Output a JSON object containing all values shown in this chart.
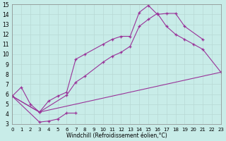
{
  "xlabel": "Windchill (Refroidissement éolien,°C)",
  "xlim": [
    0,
    23
  ],
  "ylim": [
    3,
    15
  ],
  "xticks": [
    0,
    1,
    2,
    3,
    4,
    5,
    6,
    7,
    8,
    9,
    10,
    11,
    12,
    13,
    14,
    15,
    16,
    17,
    18,
    19,
    20,
    21,
    22,
    23
  ],
  "yticks": [
    3,
    4,
    5,
    6,
    7,
    8,
    9,
    10,
    11,
    12,
    13,
    14,
    15
  ],
  "bg_color": "#c8ece8",
  "grid_color": "#b8d8d4",
  "line_color": "#993399",
  "line1_x": [
    0,
    1,
    2,
    3,
    4,
    5,
    6,
    7,
    8,
    10,
    11,
    12,
    13,
    14,
    15,
    16,
    17,
    18,
    19,
    21
  ],
  "line1_y": [
    5.8,
    6.7,
    5.0,
    4.2,
    5.3,
    5.8,
    6.2,
    9.5,
    10.0,
    11.0,
    11.5,
    11.8,
    11.8,
    14.2,
    14.9,
    14.0,
    14.1,
    14.1,
    12.8,
    11.5
  ],
  "line2_x": [
    0,
    3,
    6,
    7,
    8,
    10,
    11,
    12,
    13,
    14,
    15,
    16,
    17,
    18,
    19,
    20,
    21,
    23
  ],
  "line2_y": [
    5.8,
    4.2,
    5.9,
    7.2,
    7.8,
    9.2,
    9.8,
    10.2,
    10.8,
    12.8,
    13.5,
    14.1,
    12.8,
    12.0,
    11.5,
    11.0,
    10.5,
    8.2
  ],
  "line3_x": [
    0,
    3,
    7,
    23
  ],
  "line3_y": [
    5.8,
    4.2,
    5.0,
    8.2
  ],
  "line4_x": [
    0,
    3,
    4,
    5,
    6,
    7
  ],
  "line4_y": [
    5.8,
    3.2,
    3.3,
    3.5,
    4.1,
    4.1
  ]
}
